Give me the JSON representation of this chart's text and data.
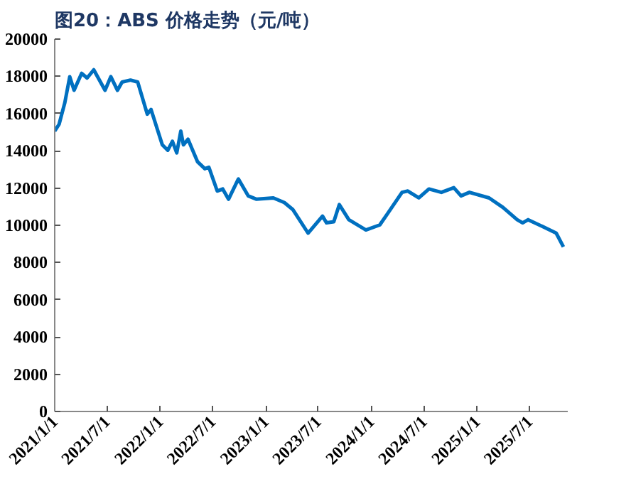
{
  "chart_data": {
    "type": "line",
    "title": "图20：ABS 价格走势（元/吨）",
    "x": [
      "2021-01-01",
      "2021-01-16",
      "2021-02-05",
      "2021-02-22",
      "2021-03-09",
      "2021-04-04",
      "2021-04-23",
      "2021-05-16",
      "2021-06-24",
      "2021-07-14",
      "2021-08-06",
      "2021-08-22",
      "2021-09-20",
      "2021-10-15",
      "2021-11-17",
      "2021-11-30",
      "2022-01-08",
      "2022-01-27",
      "2022-02-12",
      "2022-02-27",
      "2022-03-13",
      "2022-03-22",
      "2022-04-07",
      "2022-05-10",
      "2022-06-04",
      "2022-06-18",
      "2022-07-17",
      "2022-08-05",
      "2022-08-25",
      "2022-09-28",
      "2022-11-01",
      "2022-11-30",
      "2023-01-27",
      "2023-03-06",
      "2023-04-04",
      "2023-05-27",
      "2023-07-16",
      "2023-07-30",
      "2023-08-24",
      "2023-09-12",
      "2023-10-15",
      "2023-12-13",
      "2024-01-30",
      "2024-02-28",
      "2024-04-16",
      "2024-05-06",
      "2024-06-13",
      "2024-07-18",
      "2024-08-30",
      "2024-10-12",
      "2024-11-06",
      "2024-12-05",
      "2025-02-11",
      "2025-03-31",
      "2025-05-19",
      "2025-06-07",
      "2025-06-26",
      "2025-08-14",
      "2025-10-01",
      "2025-10-26"
    ],
    "series": [
      {
        "color": "#0070c0",
        "values": [
          15060,
          15420,
          16590,
          17980,
          17250,
          18160,
          17910,
          18350,
          17250,
          17980,
          17250,
          17690,
          17800,
          17690,
          15970,
          16220,
          14320,
          14030,
          14510,
          13890,
          15060,
          14320,
          14620,
          13410,
          13040,
          13120,
          11840,
          11950,
          11400,
          12490,
          11580,
          11400,
          11470,
          11220,
          10850,
          9580,
          10490,
          10130,
          10190,
          11110,
          10300,
          9750,
          10020,
          10670,
          11770,
          11840,
          11470,
          11950,
          11770,
          12020,
          11580,
          11770,
          11470,
          10960,
          10300,
          10130,
          10300,
          9940,
          9580,
          8840
        ]
      }
    ],
    "xlim": [
      "2021-01-01",
      "2025-11-10"
    ],
    "xticks": [
      {
        "value": "2021-01-01",
        "label": "2021/1/1"
      },
      {
        "value": "2021-07-01",
        "label": "2021/7/1"
      },
      {
        "value": "2022-01-01",
        "label": "2022/1/1"
      },
      {
        "value": "2022-07-01",
        "label": "2022/7/1"
      },
      {
        "value": "2023-01-01",
        "label": "2023/1/1"
      },
      {
        "value": "2023-07-01",
        "label": "2023/7/1"
      },
      {
        "value": "2024-01-01",
        "label": "2024/1/1"
      },
      {
        "value": "2024-07-01",
        "label": "2024/7/1"
      },
      {
        "value": "2025-01-01",
        "label": "2025/1/1"
      },
      {
        "value": "2025-07-01",
        "label": "2025/7/1"
      }
    ],
    "ylim": [
      0,
      20000
    ],
    "yticks": [
      0,
      2000,
      4000,
      6000,
      8000,
      10000,
      12000,
      14000,
      16000,
      18000,
      20000
    ],
    "grid": false,
    "marker": "none",
    "line_style": "solid"
  }
}
